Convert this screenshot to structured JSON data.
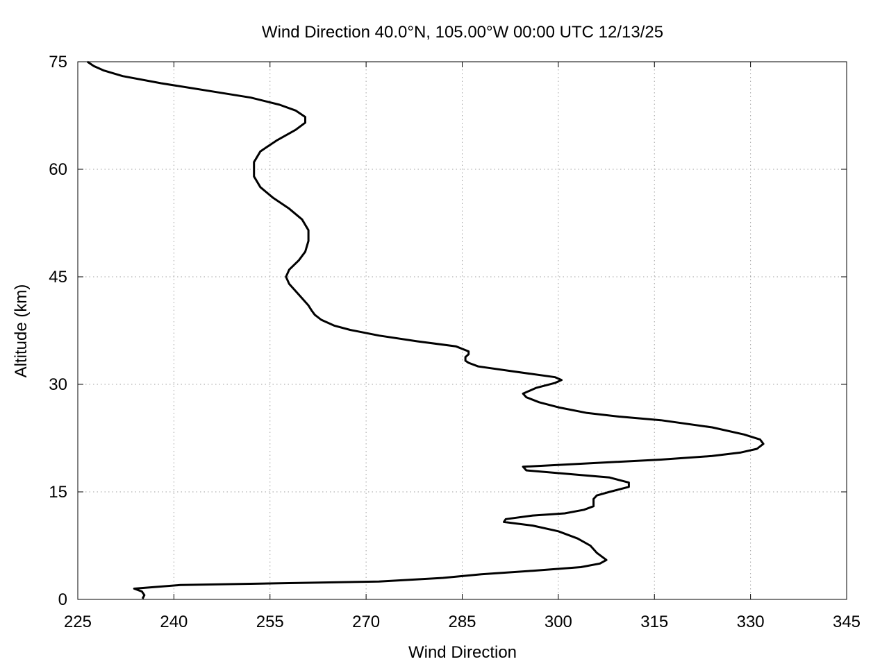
{
  "chart_data": {
    "type": "line",
    "title": "Wind Direction 40.0°N, 105.00°W 00:00 UTC 12/13/25",
    "xlabel": "Wind Direction",
    "ylabel": "Altitude (km)",
    "xlim": [
      225,
      345
    ],
    "ylim": [
      0,
      75
    ],
    "x_ticks": [
      "225",
      "240",
      "255",
      "270",
      "285",
      "300",
      "315",
      "330",
      "345"
    ],
    "y_ticks": [
      "0",
      "15",
      "30",
      "45",
      "60",
      "75"
    ],
    "grid": true,
    "series": [
      {
        "color": "#000000",
        "points": [
          [
            235.1,
            0.1
          ],
          [
            235.4,
            0.6
          ],
          [
            235.0,
            1.1
          ],
          [
            233.8,
            1.5
          ],
          [
            241.0,
            2.0
          ],
          [
            272.0,
            2.5
          ],
          [
            282.0,
            3.0
          ],
          [
            288.0,
            3.5
          ],
          [
            296.0,
            4.0
          ],
          [
            303.5,
            4.5
          ],
          [
            306.5,
            5.0
          ],
          [
            307.5,
            5.5
          ],
          [
            306.0,
            6.5
          ],
          [
            305.0,
            7.5
          ],
          [
            303.0,
            8.5
          ],
          [
            300.0,
            9.5
          ],
          [
            296.0,
            10.3
          ],
          [
            291.5,
            10.8
          ],
          [
            291.8,
            11.2
          ],
          [
            296.0,
            11.7
          ],
          [
            301.0,
            12.0
          ],
          [
            304.0,
            12.5
          ],
          [
            305.5,
            13.0
          ],
          [
            305.5,
            14.0
          ],
          [
            306.0,
            14.5
          ],
          [
            308.0,
            15.0
          ],
          [
            311.0,
            15.7
          ],
          [
            311.0,
            16.3
          ],
          [
            308.0,
            17.0
          ],
          [
            295.0,
            18.0
          ],
          [
            294.5,
            18.5
          ],
          [
            305.0,
            19.0
          ],
          [
            316.0,
            19.5
          ],
          [
            324.0,
            20.0
          ],
          [
            328.5,
            20.5
          ],
          [
            331.0,
            21.0
          ],
          [
            332.0,
            21.7
          ],
          [
            331.5,
            22.3
          ],
          [
            329.0,
            23.0
          ],
          [
            324.0,
            24.0
          ],
          [
            316.0,
            25.0
          ],
          [
            309.5,
            25.5
          ],
          [
            304.5,
            26.0
          ],
          [
            300.0,
            26.8
          ],
          [
            297.0,
            27.5
          ],
          [
            295.0,
            28.2
          ],
          [
            294.5,
            28.7
          ],
          [
            296.5,
            29.5
          ],
          [
            299.5,
            30.2
          ],
          [
            300.5,
            30.6
          ],
          [
            299.5,
            31.0
          ],
          [
            293.0,
            31.8
          ],
          [
            287.5,
            32.5
          ],
          [
            286.0,
            33.0
          ],
          [
            285.5,
            33.3
          ],
          [
            285.5,
            33.8
          ],
          [
            286.0,
            34.2
          ],
          [
            286.0,
            34.6
          ],
          [
            284.0,
            35.3
          ],
          [
            278.0,
            36.0
          ],
          [
            272.0,
            36.8
          ],
          [
            267.5,
            37.6
          ],
          [
            265.0,
            38.2
          ],
          [
            263.0,
            39.0
          ],
          [
            262.0,
            39.7
          ],
          [
            261.5,
            40.3
          ],
          [
            261.0,
            41.0
          ],
          [
            259.5,
            42.5
          ],
          [
            258.0,
            44.0
          ],
          [
            257.5,
            45.0
          ],
          [
            258.0,
            46.0
          ],
          [
            259.5,
            47.3
          ],
          [
            260.5,
            48.5
          ],
          [
            261.0,
            50.0
          ],
          [
            261.0,
            51.5
          ],
          [
            260.0,
            53.0
          ],
          [
            258.0,
            54.5
          ],
          [
            255.5,
            56.0
          ],
          [
            253.5,
            57.5
          ],
          [
            252.5,
            59.0
          ],
          [
            252.5,
            61.0
          ],
          [
            253.5,
            62.5
          ],
          [
            256.0,
            64.0
          ],
          [
            259.0,
            65.5
          ],
          [
            260.5,
            66.5
          ],
          [
            260.5,
            67.3
          ],
          [
            259.0,
            68.2
          ],
          [
            256.5,
            69.0
          ],
          [
            252.0,
            70.0
          ],
          [
            245.0,
            71.0
          ],
          [
            238.0,
            72.0
          ],
          [
            232.0,
            73.0
          ],
          [
            229.0,
            73.8
          ],
          [
            227.5,
            74.4
          ],
          [
            226.5,
            75.0
          ]
        ]
      }
    ]
  }
}
